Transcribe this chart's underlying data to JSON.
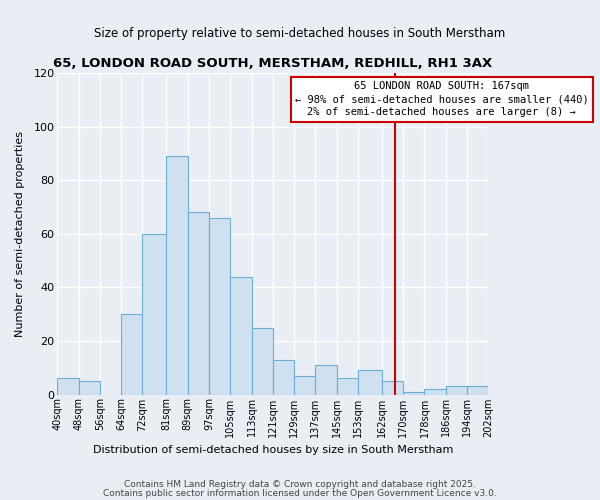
{
  "title": "65, LONDON ROAD SOUTH, MERSTHAM, REDHILL, RH1 3AX",
  "subtitle": "Size of property relative to semi-detached houses in South Merstham",
  "xlabel": "Distribution of semi-detached houses by size in South Merstham",
  "ylabel": "Number of semi-detached properties",
  "bin_edges": [
    40,
    48,
    56,
    64,
    72,
    81,
    89,
    97,
    105,
    113,
    121,
    129,
    137,
    145,
    153,
    162,
    170,
    178,
    186,
    194,
    202
  ],
  "bin_labels": [
    "40sqm",
    "48sqm",
    "56sqm",
    "64sqm",
    "72sqm",
    "81sqm",
    "89sqm",
    "97sqm",
    "105sqm",
    "113sqm",
    "121sqm",
    "129sqm",
    "137sqm",
    "145sqm",
    "153sqm",
    "162sqm",
    "170sqm",
    "178sqm",
    "186sqm",
    "194sqm",
    "202sqm"
  ],
  "counts": [
    6,
    5,
    0,
    30,
    60,
    89,
    68,
    66,
    44,
    25,
    13,
    7,
    11,
    6,
    9,
    5,
    1,
    2,
    3,
    3
  ],
  "bar_color": "#cfe0f0",
  "bar_edge_color": "#6baed6",
  "vline_x": 167,
  "vline_color": "#cc0000",
  "annotation_title": "65 LONDON ROAD SOUTH: 167sqm",
  "annotation_line1": "← 98% of semi-detached houses are smaller (440)",
  "annotation_line2": "2% of semi-detached houses are larger (8) →",
  "annotation_box_color": "white",
  "annotation_box_edge": "#cc0000",
  "ylim": [
    0,
    120
  ],
  "yticks": [
    0,
    20,
    40,
    60,
    80,
    100,
    120
  ],
  "footer1": "Contains HM Land Registry data © Crown copyright and database right 2025.",
  "footer2": "Contains public sector information licensed under the Open Government Licence v3.0.",
  "background_color": "#e8eef4",
  "grid_color": "white"
}
